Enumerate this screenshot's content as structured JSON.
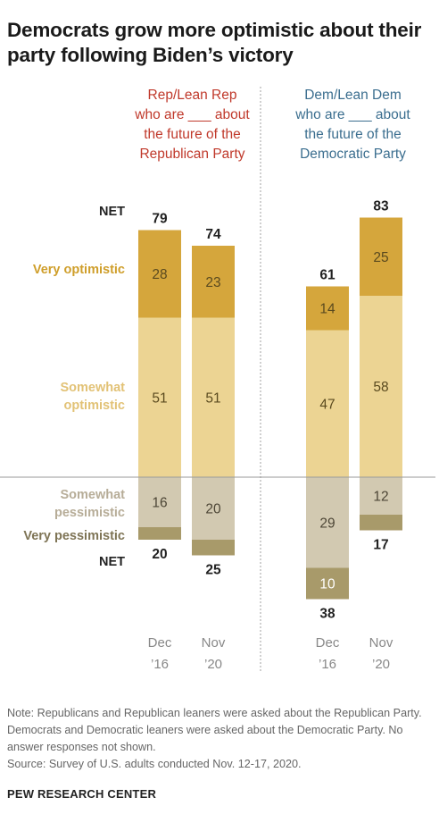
{
  "title": "Democrats grow more optimistic about their party following Biden’s victory",
  "groups": [
    {
      "heading": [
        "Rep/Lean Rep",
        "who are ___ about",
        "the future of the",
        "Republican Party"
      ]
    },
    {
      "heading": [
        "Dem/Lean Dem",
        "who are ___ about",
        "the future of the",
        "Democratic Party"
      ]
    }
  ],
  "row_labels": {
    "net_top": "NET",
    "very_optimistic": "Very optimistic",
    "somewhat_optimistic": [
      "Somewhat",
      "optimistic"
    ],
    "somewhat_pessimistic": [
      "Somewhat",
      "pessimistic"
    ],
    "very_pessimistic": "Very pessimistic",
    "net_bottom": "NET"
  },
  "ticks": [
    {
      "line1": "Dec",
      "line2": "’16"
    },
    {
      "line1": "Nov",
      "line2": "’20"
    },
    {
      "line1": "Dec",
      "line2": "’16"
    },
    {
      "line1": "Nov",
      "line2": "’20"
    }
  ],
  "note": "Note: Republicans and Republican leaners were asked about the Republican Party. Democrats and Democratic leaners were asked about the Democratic Party. No answer responses not shown.",
  "source": "Source: Survey of U.S. adults conducted Nov. 12-17, 2020.",
  "brand": "PEW RESEARCH CENTER",
  "colors": {
    "very_optimistic": "#d5a63c",
    "somewhat_optimistic": "#ecd493",
    "somewhat_pessimistic": "#d2c9b1",
    "very_pessimistic": "#a89a6a",
    "rep_heading": "#c0392b",
    "dem_heading": "#3b6e8f"
  },
  "chart_data": {
    "type": "bar",
    "stacked": "diverging",
    "categories": [
      "Rep Dec '16",
      "Rep Nov '20",
      "Dem Dec '16",
      "Dem Nov '20"
    ],
    "series": [
      {
        "name": "Very optimistic",
        "values": [
          28,
          23,
          14,
          25
        ]
      },
      {
        "name": "Somewhat optimistic",
        "values": [
          51,
          51,
          47,
          58
        ]
      },
      {
        "name": "Somewhat pessimistic",
        "values": [
          16,
          20,
          29,
          12
        ]
      },
      {
        "name": "Very pessimistic",
        "values": [
          4,
          5,
          10,
          5
        ]
      }
    ],
    "net_optimistic": [
      79,
      74,
      61,
      83
    ],
    "net_pessimistic": [
      20,
      25,
      38,
      17
    ],
    "segment_labels": {
      "very_optimistic": [
        "28",
        "23",
        "14",
        "25"
      ],
      "somewhat_optimistic": [
        "51",
        "51",
        "47",
        "58"
      ],
      "somewhat_pessimistic": [
        "16",
        "20",
        "29",
        "12"
      ],
      "very_pessimistic": [
        "",
        "",
        "10",
        ""
      ]
    }
  }
}
